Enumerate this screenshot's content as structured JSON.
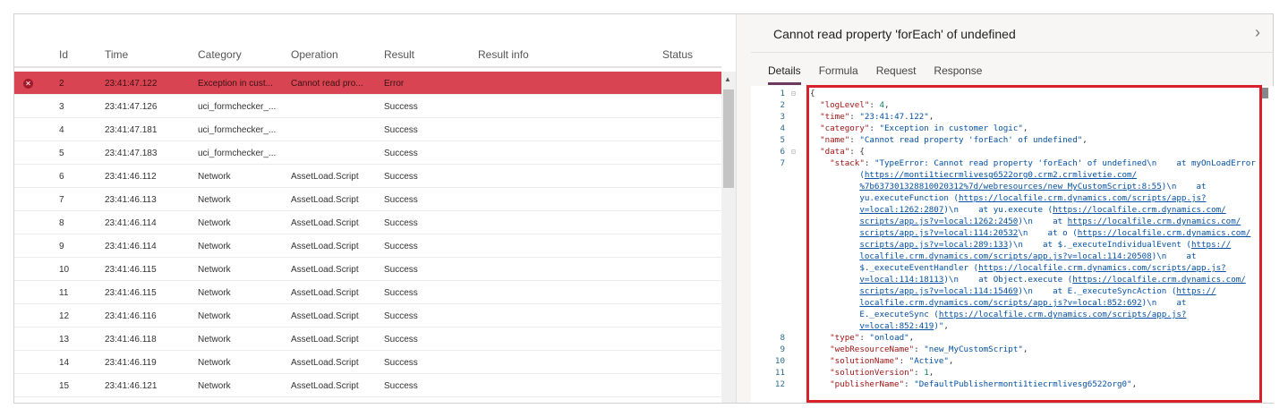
{
  "table": {
    "columns": [
      "Id",
      "Time",
      "Category",
      "Operation",
      "Result",
      "Result info",
      "Status"
    ],
    "rows": [
      {
        "id": "2",
        "time": "23:41:47.122",
        "category": "Exception in cust...",
        "operation": "Cannot read pro...",
        "result": "Error",
        "error": true
      },
      {
        "id": "3",
        "time": "23:41:47.126",
        "category": "uci_formchecker_...",
        "operation": "",
        "result": "Success"
      },
      {
        "id": "4",
        "time": "23:41:47.181",
        "category": "uci_formchecker_...",
        "operation": "",
        "result": "Success"
      },
      {
        "id": "5",
        "time": "23:41:47.183",
        "category": "uci_formchecker_...",
        "operation": "",
        "result": "Success"
      },
      {
        "id": "6",
        "time": "23:41:46.112",
        "category": "Network",
        "operation": "AssetLoad.Script",
        "result": "Success"
      },
      {
        "id": "7",
        "time": "23:41:46.113",
        "category": "Network",
        "operation": "AssetLoad.Script",
        "result": "Success"
      },
      {
        "id": "8",
        "time": "23:41:46.114",
        "category": "Network",
        "operation": "AssetLoad.Script",
        "result": "Success"
      },
      {
        "id": "9",
        "time": "23:41:46.114",
        "category": "Network",
        "operation": "AssetLoad.Script",
        "result": "Success"
      },
      {
        "id": "10",
        "time": "23:41:46.115",
        "category": "Network",
        "operation": "AssetLoad.Script",
        "result": "Success"
      },
      {
        "id": "11",
        "time": "23:41:46.115",
        "category": "Network",
        "operation": "AssetLoad.Script",
        "result": "Success"
      },
      {
        "id": "12",
        "time": "23:41:46.116",
        "category": "Network",
        "operation": "AssetLoad.Script",
        "result": "Success"
      },
      {
        "id": "13",
        "time": "23:41:46.118",
        "category": "Network",
        "operation": "AssetLoad.Script",
        "result": "Success"
      },
      {
        "id": "14",
        "time": "23:41:46.119",
        "category": "Network",
        "operation": "AssetLoad.Script",
        "result": "Success"
      },
      {
        "id": "15",
        "time": "23:41:46.121",
        "category": "Network",
        "operation": "AssetLoad.Script",
        "result": "Success"
      }
    ]
  },
  "details": {
    "title": "Cannot read property 'forEach' of undefined",
    "tabs": [
      "Details",
      "Formula",
      "Request",
      "Response"
    ],
    "active_tab": "Details",
    "code": [
      {
        "n": "1",
        "fold": true,
        "t": [
          [
            "p",
            "{"
          ]
        ]
      },
      {
        "n": "2",
        "t": [
          [
            "k",
            "  \"logLevel\""
          ],
          [
            "p",
            ": "
          ],
          [
            "n",
            "4"
          ],
          [
            "p",
            ","
          ]
        ]
      },
      {
        "n": "3",
        "t": [
          [
            "k",
            "  \"time\""
          ],
          [
            "p",
            ": "
          ],
          [
            "s",
            "\"23:41:47.122\""
          ],
          [
            "p",
            ","
          ]
        ]
      },
      {
        "n": "4",
        "t": [
          [
            "k",
            "  \"category\""
          ],
          [
            "p",
            ": "
          ],
          [
            "s",
            "\"Exception in customer logic\""
          ],
          [
            "p",
            ","
          ]
        ]
      },
      {
        "n": "5",
        "t": [
          [
            "k",
            "  \"name\""
          ],
          [
            "p",
            ": "
          ],
          [
            "s",
            "\"Cannot read property 'forEach' of undefined\""
          ],
          [
            "p",
            ","
          ]
        ]
      },
      {
        "n": "6",
        "fold": true,
        "t": [
          [
            "k",
            "  \"data\""
          ],
          [
            "p",
            ": {"
          ]
        ]
      },
      {
        "n": "7",
        "t": [
          [
            "k",
            "    \"stack\""
          ],
          [
            "p",
            ": "
          ],
          [
            "s",
            "\"TypeError: Cannot read property 'forEach' of undefined\\n    at myOnLoadError"
          ]
        ]
      },
      {
        "n": "",
        "t": [
          [
            "p",
            "          "
          ],
          [
            "s",
            "("
          ],
          [
            "u",
            "https://monti1tiecrmlivesg6522org0.crm2.crmlivetie.com/"
          ]
        ]
      },
      {
        "n": "",
        "t": [
          [
            "p",
            "          "
          ],
          [
            "u",
            "%7b637301328810020312%7d/webresources/new_MyCustomScript:8:55"
          ],
          [
            "s",
            ")\\n    at"
          ]
        ]
      },
      {
        "n": "",
        "t": [
          [
            "p",
            "          "
          ],
          [
            "s",
            "yu.executeFunction ("
          ],
          [
            "u",
            "https://localfile.crm.dynamics.com/scripts/app.js?"
          ]
        ]
      },
      {
        "n": "",
        "t": [
          [
            "p",
            "          "
          ],
          [
            "u",
            "v=local:1262:2807"
          ],
          [
            "s",
            ")\\n    at yu.execute ("
          ],
          [
            "u",
            "https://localfile.crm.dynamics.com/"
          ]
        ]
      },
      {
        "n": "",
        "t": [
          [
            "p",
            "          "
          ],
          [
            "u",
            "scripts/app.js?v=local:1262:2450"
          ],
          [
            "s",
            ")\\n    at "
          ],
          [
            "u",
            "https://localfile.crm.dynamics.com/"
          ]
        ]
      },
      {
        "n": "",
        "t": [
          [
            "p",
            "          "
          ],
          [
            "u",
            "scripts/app.js?v=local:114:20532"
          ],
          [
            "s",
            "\\n    at o ("
          ],
          [
            "u",
            "https://localfile.crm.dynamics.com/"
          ]
        ]
      },
      {
        "n": "",
        "t": [
          [
            "p",
            "          "
          ],
          [
            "u",
            "scripts/app.js?v=local:289:133"
          ],
          [
            "s",
            ")\\n    at $._executeIndividualEvent ("
          ],
          [
            "u",
            "https://"
          ]
        ]
      },
      {
        "n": "",
        "t": [
          [
            "p",
            "          "
          ],
          [
            "u",
            "localfile.crm.dynamics.com/scripts/app.js?v=local:114:20508"
          ],
          [
            "s",
            ")\\n    at"
          ]
        ]
      },
      {
        "n": "",
        "t": [
          [
            "p",
            "          "
          ],
          [
            "s",
            "$._executeEventHandler ("
          ],
          [
            "u",
            "https://localfile.crm.dynamics.com/scripts/app.js?"
          ]
        ]
      },
      {
        "n": "",
        "t": [
          [
            "p",
            "          "
          ],
          [
            "u",
            "v=local:114:18113"
          ],
          [
            "s",
            ")\\n    at Object.execute ("
          ],
          [
            "u",
            "https://localfile.crm.dynamics.com/"
          ]
        ]
      },
      {
        "n": "",
        "t": [
          [
            "p",
            "          "
          ],
          [
            "u",
            "scripts/app.js?v=local:114:15469"
          ],
          [
            "s",
            ")\\n    at E._executeSyncAction ("
          ],
          [
            "u",
            "https://"
          ]
        ]
      },
      {
        "n": "",
        "t": [
          [
            "p",
            "          "
          ],
          [
            "u",
            "localfile.crm.dynamics.com/scripts/app.js?v=local:852:692"
          ],
          [
            "s",
            ")\\n    at"
          ]
        ]
      },
      {
        "n": "",
        "t": [
          [
            "p",
            "          "
          ],
          [
            "s",
            "E._executeSync ("
          ],
          [
            "u",
            "https://localfile.crm.dynamics.com/scripts/app.js?"
          ]
        ]
      },
      {
        "n": "",
        "t": [
          [
            "p",
            "          "
          ],
          [
            "u",
            "v=local:852:419"
          ],
          [
            "s",
            ")\""
          ],
          [
            "p",
            ","
          ]
        ]
      },
      {
        "n": "8",
        "t": [
          [
            "k",
            "    \"type\""
          ],
          [
            "p",
            ": "
          ],
          [
            "s",
            "\"onload\""
          ],
          [
            "p",
            ","
          ]
        ]
      },
      {
        "n": "9",
        "t": [
          [
            "k",
            "    \"webResourceName\""
          ],
          [
            "p",
            ": "
          ],
          [
            "s",
            "\"new_MyCustomScript\""
          ],
          [
            "p",
            ","
          ]
        ]
      },
      {
        "n": "10",
        "t": [
          [
            "k",
            "    \"solutionName\""
          ],
          [
            "p",
            ": "
          ],
          [
            "s",
            "\"Active\""
          ],
          [
            "p",
            ","
          ]
        ]
      },
      {
        "n": "11",
        "t": [
          [
            "k",
            "    \"solutionVersion\""
          ],
          [
            "p",
            ": "
          ],
          [
            "n",
            "1"
          ],
          [
            "p",
            ","
          ]
        ]
      },
      {
        "n": "12",
        "t": [
          [
            "k",
            "    \"publisherName\""
          ],
          [
            "p",
            ": "
          ],
          [
            "s",
            "\"DefaultPublishermonti1tiecrmlivesg6522org0\""
          ],
          [
            "p",
            ","
          ]
        ]
      }
    ]
  },
  "colors": {
    "error_row": "#d94452",
    "highlight_box": "#d8202a",
    "active_tab": "#6b3a5e"
  }
}
